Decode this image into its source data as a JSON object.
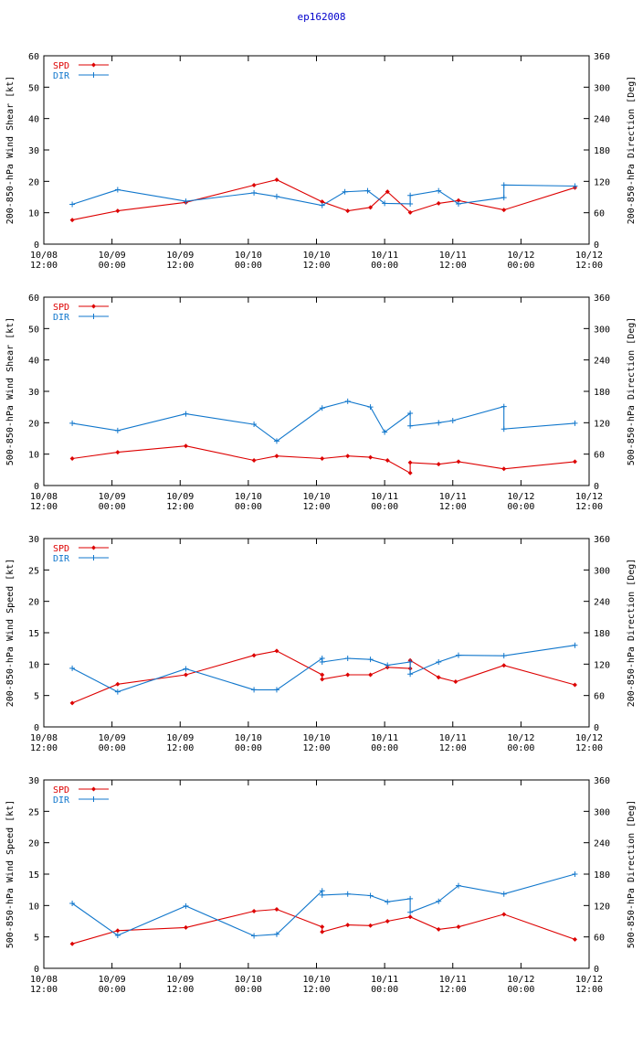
{
  "page_title": "ep162008",
  "colors": {
    "spd": "#dd0000",
    "dir": "#1177cc",
    "axis": "#000000"
  },
  "time_ticks": [
    {
      "t": 0,
      "l1": "10/08",
      "l2": "12:00"
    },
    {
      "t": 12,
      "l1": "10/09",
      "l2": "00:00"
    },
    {
      "t": 24,
      "l1": "10/09",
      "l2": "12:00"
    },
    {
      "t": 36,
      "l1": "10/10",
      "l2": "00:00"
    },
    {
      "t": 48,
      "l1": "10/10",
      "l2": "12:00"
    },
    {
      "t": 60,
      "l1": "10/11",
      "l2": "00:00"
    },
    {
      "t": 72,
      "l1": "10/11",
      "l2": "12:00"
    },
    {
      "t": 84,
      "l1": "10/12",
      "l2": "00:00"
    },
    {
      "t": 96,
      "l1": "10/12",
      "l2": "12:00"
    }
  ],
  "chart_data": [
    {
      "type": "line",
      "ylabel": "200-850-hPa Wind Shear [kt]",
      "y2label": "200-850-hPa Direction [Deg]",
      "ylim": [
        0,
        60
      ],
      "yticks": [
        0,
        10,
        20,
        30,
        40,
        50,
        60
      ],
      "y2lim": [
        0,
        360
      ],
      "y2ticks": [
        0,
        60,
        120,
        180,
        240,
        300,
        360
      ],
      "xlim": [
        0,
        96
      ],
      "legend": [
        "SPD",
        "DIR"
      ],
      "series": [
        {
          "name": "SPD",
          "axis": "left",
          "x": [
            5,
            13,
            25,
            37,
            41,
            49,
            53.5,
            57.5,
            60.5,
            64.5,
            69.5,
            73,
            81,
            93.5
          ],
          "y": [
            7.7,
            10.6,
            13.3,
            18.8,
            20.5,
            13.5,
            10.6,
            11.7,
            16.7,
            10.1,
            13.0,
            13.9,
            10.9,
            18.0
          ]
        },
        {
          "name": "DIR",
          "axis": "right",
          "x": [
            5,
            13,
            25,
            37,
            41,
            49,
            53,
            57,
            60,
            64.5,
            64.5,
            69.5,
            73,
            81,
            81,
            93.5
          ],
          "y": [
            76,
            104,
            82,
            98,
            91,
            74,
            100,
            102,
            78,
            77,
            93,
            102,
            77,
            89,
            113,
            111
          ]
        }
      ]
    },
    {
      "type": "line",
      "ylabel": "500-850-hPa Wind Shear [kt]",
      "y2label": "500-850-hPa Direction [Deg]",
      "ylim": [
        0,
        60
      ],
      "yticks": [
        0,
        10,
        20,
        30,
        40,
        50,
        60
      ],
      "y2lim": [
        0,
        360
      ],
      "y2ticks": [
        0,
        60,
        120,
        180,
        240,
        300,
        360
      ],
      "xlim": [
        0,
        96
      ],
      "legend": [
        "SPD",
        "DIR"
      ],
      "series": [
        {
          "name": "SPD",
          "axis": "left",
          "x": [
            5,
            13,
            25,
            37,
            41,
            49,
            53.5,
            57.5,
            60.5,
            64.5,
            64.5,
            69.5,
            73,
            81,
            93.5
          ],
          "y": [
            8.6,
            10.6,
            12.6,
            8.0,
            9.4,
            8.6,
            9.4,
            9.0,
            8.0,
            4.0,
            7.3,
            6.8,
            7.6,
            5.3,
            7.6
          ]
        },
        {
          "name": "DIR",
          "axis": "right",
          "x": [
            5,
            13,
            25,
            37,
            41,
            49,
            53.5,
            57.5,
            60,
            64.5,
            64.5,
            69.5,
            72,
            81,
            81,
            93.5
          ],
          "y": [
            119,
            105,
            137,
            117,
            85,
            148,
            161,
            150,
            102,
            138,
            114,
            120,
            124,
            151,
            108,
            119
          ]
        }
      ]
    },
    {
      "type": "line",
      "ylabel": "200-850-hPa Wind Speed [kt]",
      "y2label": "200-850-hPa Direction [Deg]",
      "ylim": [
        0,
        30
      ],
      "yticks": [
        0,
        5,
        10,
        15,
        20,
        25,
        30
      ],
      "y2lim": [
        0,
        360
      ],
      "y2ticks": [
        0,
        60,
        120,
        180,
        240,
        300,
        360
      ],
      "xlim": [
        0,
        96
      ],
      "legend": [
        "SPD",
        "DIR"
      ],
      "series": [
        {
          "name": "SPD",
          "axis": "left",
          "x": [
            5,
            13,
            25,
            37,
            41,
            49,
            49,
            53.5,
            57.5,
            60.5,
            64.5,
            64.5,
            69.5,
            72.5,
            81,
            93.5
          ],
          "y": [
            3.8,
            6.8,
            8.3,
            11.4,
            12.1,
            8.3,
            7.6,
            8.3,
            8.3,
            9.5,
            9.3,
            10.6,
            7.9,
            7.2,
            9.8,
            6.7
          ]
        },
        {
          "name": "DIR",
          "axis": "right",
          "x": [
            5,
            13,
            25,
            37,
            41,
            49,
            49,
            53.5,
            57.5,
            60.5,
            64.5,
            64.5,
            69.5,
            73,
            81,
            93.5
          ],
          "y": [
            112,
            67,
            111,
            71,
            71,
            131,
            124,
            131,
            129,
            118,
            124,
            101,
            124,
            137,
            136,
            156
          ]
        }
      ]
    },
    {
      "type": "line",
      "ylabel": "500-850-hPa Wind Speed [kt]",
      "y2label": "500-850-hPa Direction [Deg]",
      "ylim": [
        0,
        30
      ],
      "yticks": [
        0,
        5,
        10,
        15,
        20,
        25,
        30
      ],
      "y2lim": [
        0,
        360
      ],
      "y2ticks": [
        0,
        60,
        120,
        180,
        240,
        300,
        360
      ],
      "xlim": [
        0,
        96
      ],
      "legend": [
        "SPD",
        "DIR"
      ],
      "series": [
        {
          "name": "SPD",
          "axis": "left",
          "x": [
            5,
            13,
            25,
            37,
            41,
            49,
            49,
            53.5,
            57.5,
            60.5,
            64.5,
            69.5,
            73,
            81,
            93.5
          ],
          "y": [
            3.9,
            6.0,
            6.5,
            9.1,
            9.4,
            6.6,
            5.8,
            6.9,
            6.8,
            7.5,
            8.2,
            6.2,
            6.6,
            8.6,
            4.6
          ]
        },
        {
          "name": "DIR",
          "axis": "right",
          "x": [
            5,
            13,
            25,
            37,
            41,
            49,
            49,
            53.5,
            57.5,
            60.5,
            64.5,
            64.5,
            69.5,
            73,
            81,
            93.5
          ],
          "y": [
            124,
            63,
            119,
            62,
            65,
            148,
            140,
            142,
            139,
            127,
            133,
            107,
            128,
            158,
            142,
            180
          ]
        }
      ]
    }
  ]
}
